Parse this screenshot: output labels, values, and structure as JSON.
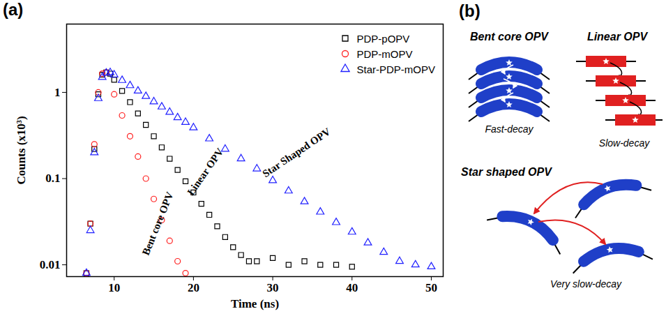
{
  "chart_data": {
    "type": "scatter",
    "title": "(a)",
    "x_label": "Time (ns)",
    "y_label": "Counts (x10³)",
    "log": "y",
    "grid": false,
    "legend": "top-right",
    "xlim": [
      4,
      51.5
    ],
    "xticks": [
      10,
      20,
      30,
      40,
      50
    ],
    "ylim": [
      0.0073,
      6.2
    ],
    "yticks": [
      0.01,
      0.1,
      1
    ],
    "series": [
      {
        "name": "PDP-pOPV",
        "color": "#000000",
        "marker": "square",
        "x": [
          6.5,
          7,
          7.5,
          8,
          8.5,
          9,
          9.5,
          10,
          11,
          12,
          13,
          14,
          15,
          16,
          17,
          18,
          19,
          20,
          21,
          22,
          23,
          24,
          25,
          26,
          27,
          28,
          30,
          32,
          34,
          36,
          38,
          40
        ],
        "values": [
          0.008,
          0.03,
          0.22,
          0.95,
          1.6,
          1.7,
          1.65,
          1.4,
          1.04,
          0.77,
          0.57,
          0.42,
          0.31,
          0.23,
          0.17,
          0.126,
          0.093,
          0.069,
          0.051,
          0.038,
          0.028,
          0.021,
          0.016,
          0.013,
          0.011,
          0.011,
          0.012,
          0.01,
          0.011,
          0.01,
          0.01,
          0.0095
        ]
      },
      {
        "name": "PDP-mOPV",
        "color": "#ff2020",
        "marker": "circle",
        "x": [
          6.5,
          7,
          7.5,
          8,
          8.5,
          9,
          10,
          11,
          12,
          13,
          14,
          15,
          16,
          17,
          18,
          19
        ],
        "values": [
          0.008,
          0.03,
          0.25,
          1.0,
          1.65,
          1.7,
          0.95,
          0.54,
          0.31,
          0.18,
          0.1,
          0.058,
          0.033,
          0.019,
          0.011,
          0.008
        ]
      },
      {
        "name": "Star-PDP-mOPV",
        "color": "#2020ff",
        "marker": "triangle",
        "x": [
          6.5,
          7,
          7.5,
          8,
          8.5,
          9,
          9.5,
          10,
          11,
          12,
          13,
          14,
          15,
          16,
          17,
          18,
          19,
          20,
          22,
          24,
          26,
          28,
          30,
          32,
          34,
          36,
          38,
          40,
          42,
          44,
          46,
          48,
          50
        ],
        "values": [
          0.008,
          0.025,
          0.2,
          0.85,
          1.5,
          1.68,
          1.7,
          1.6,
          1.38,
          1.2,
          1.04,
          0.9,
          0.78,
          0.68,
          0.59,
          0.51,
          0.45,
          0.39,
          0.29,
          0.22,
          0.17,
          0.13,
          0.095,
          0.072,
          0.054,
          0.041,
          0.031,
          0.024,
          0.018,
          0.014,
          0.011,
          0.01,
          0.0095
        ]
      }
    ],
    "annotations": [
      {
        "text": "Bent core OPV",
        "x": 15.5,
        "y": 0.03
      },
      {
        "text": "Linear OPV",
        "x": 21.5,
        "y": 0.12
      },
      {
        "text": "Star Shaped OPV",
        "x": 33,
        "y": 0.2
      }
    ]
  },
  "diagram": {
    "label": "(b)",
    "panels": [
      {
        "title": "Bent core OPV",
        "caption": "Fast-decay"
      },
      {
        "title": "Linear OPV",
        "caption": "Slow-decay"
      },
      {
        "title": "Star shaped OPV",
        "caption": "Very slow-decay"
      }
    ]
  }
}
